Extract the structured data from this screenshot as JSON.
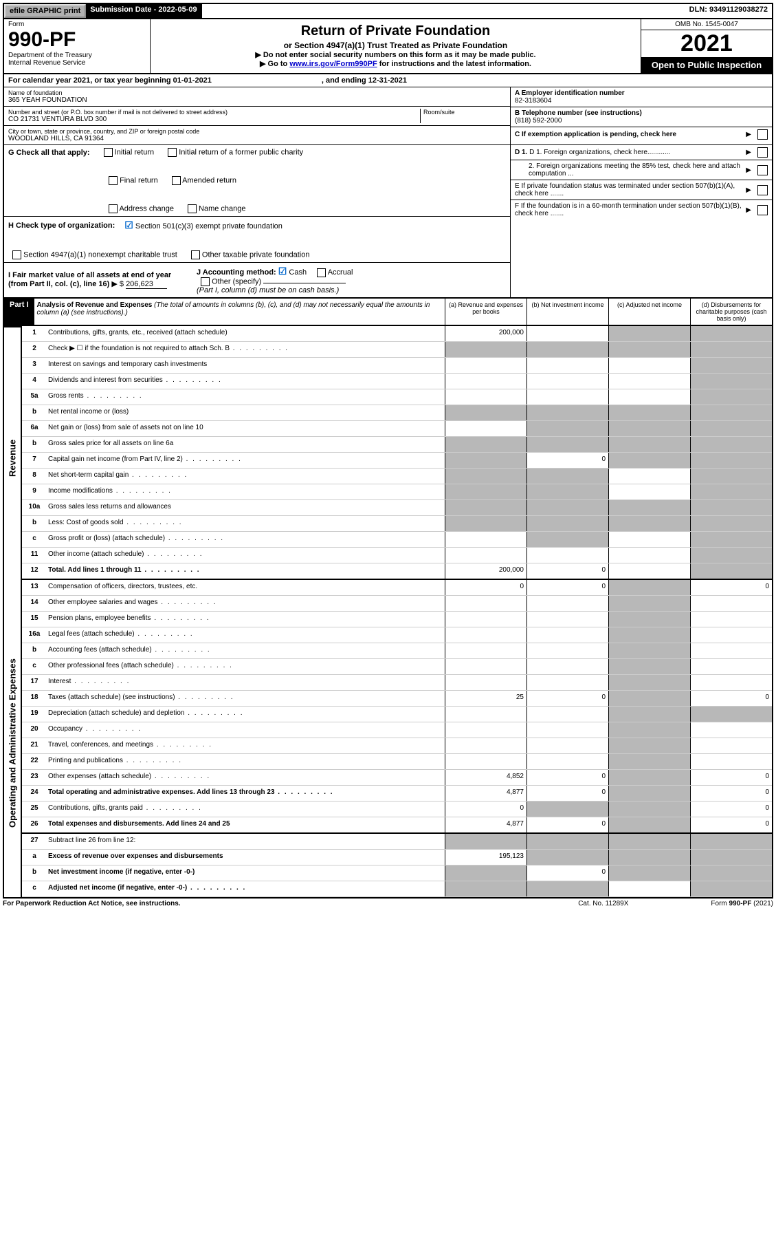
{
  "top": {
    "efile": "efile GRAPHIC print",
    "submission_label": "Submission Date - 2022-05-09",
    "dln": "DLN: 93491129038272"
  },
  "header": {
    "form_word": "Form",
    "form_number": "990-PF",
    "dept1": "Department of the Treasury",
    "dept2": "Internal Revenue Service",
    "title": "Return of Private Foundation",
    "subtitle": "or Section 4947(a)(1) Trust Treated as Private Foundation",
    "instr1": "▶ Do not enter social security numbers on this form as it may be made public.",
    "instr2_pre": "▶ Go to ",
    "instr2_link": "www.irs.gov/Form990PF",
    "instr2_post": " for instructions and the latest information.",
    "omb": "OMB No. 1545-0047",
    "year": "2021",
    "open": "Open to Public Inspection"
  },
  "calyear": {
    "pre": "For calendar year 2021, or tax year beginning 01-01-2021",
    "mid": ", and ending 12-31-2021"
  },
  "info": {
    "name_lbl": "Name of foundation",
    "name": "365 YEAH FOUNDATION",
    "addr_lbl": "Number and street (or P.O. box number if mail is not delivered to street address)",
    "addr": "CO 21731 VENTURA BLVD 300",
    "room_lbl": "Room/suite",
    "city_lbl": "City or town, state or province, country, and ZIP or foreign postal code",
    "city": "WOODLAND HILLS, CA  91364",
    "a_lbl": "A Employer identification number",
    "a_val": "82-3183604",
    "b_lbl": "B Telephone number (see instructions)",
    "b_val": "(818) 592-2000",
    "c_lbl": "C If exemption application is pending, check here",
    "d1": "D 1. Foreign organizations, check here............",
    "d2": "2. Foreign organizations meeting the 85% test, check here and attach computation ...",
    "e": "E  If private foundation status was terminated under section 507(b)(1)(A), check here .......",
    "f": "F  If the foundation is in a 60-month termination under section 507(b)(1)(B), check here .......",
    "g_lbl": "G Check all that apply:",
    "g_opts": [
      "Initial return",
      "Final return",
      "Address change",
      "Initial return of a former public charity",
      "Amended return",
      "Name change"
    ],
    "h_lbl": "H Check type of organization:",
    "h_opt1": "Section 501(c)(3) exempt private foundation",
    "h_opt2": "Section 4947(a)(1) nonexempt charitable trust",
    "h_opt3": "Other taxable private foundation",
    "i_lbl": "I Fair market value of all assets at end of year (from Part II, col. (c), line 16)",
    "i_val": "206,623",
    "j_lbl": "J Accounting method:",
    "j_cash": "Cash",
    "j_accrual": "Accrual",
    "j_other": "Other (specify)",
    "j_note": "(Part I, column (d) must be on cash basis.)"
  },
  "part1": {
    "label": "Part I",
    "title": "Analysis of Revenue and Expenses",
    "title_note": "(The total of amounts in columns (b), (c), and (d) may not necessarily equal the amounts in column (a) (see instructions).)",
    "col_a": "(a)  Revenue and expenses per books",
    "col_b": "(b)  Net investment income",
    "col_c": "(c)  Adjusted net income",
    "col_d": "(d)  Disbursements for charitable purposes (cash basis only)"
  },
  "vlabels": {
    "revenue": "Revenue",
    "expenses": "Operating and Administrative Expenses"
  },
  "rows": [
    {
      "ln": "1",
      "desc": "Contributions, gifts, grants, etc., received (attach schedule)",
      "a": "200,000",
      "b": "",
      "c": "shade",
      "d": "shade"
    },
    {
      "ln": "2",
      "desc": "Check ▶ ☐ if the foundation is not required to attach Sch. B",
      "dots": true,
      "a": "shade",
      "b": "shade",
      "c": "shade",
      "d": "shade"
    },
    {
      "ln": "3",
      "desc": "Interest on savings and temporary cash investments",
      "a": "",
      "b": "",
      "c": "",
      "d": "shade"
    },
    {
      "ln": "4",
      "desc": "Dividends and interest from securities",
      "dots": true,
      "a": "",
      "b": "",
      "c": "",
      "d": "shade"
    },
    {
      "ln": "5a",
      "desc": "Gross rents",
      "dots": true,
      "a": "",
      "b": "",
      "c": "",
      "d": "shade"
    },
    {
      "ln": "b",
      "desc": "Net rental income or (loss)",
      "a": "shade",
      "b": "shade",
      "c": "shade",
      "d": "shade"
    },
    {
      "ln": "6a",
      "desc": "Net gain or (loss) from sale of assets not on line 10",
      "a": "",
      "b": "shade",
      "c": "shade",
      "d": "shade"
    },
    {
      "ln": "b",
      "desc": "Gross sales price for all assets on line 6a",
      "a": "shade",
      "b": "shade",
      "c": "shade",
      "d": "shade"
    },
    {
      "ln": "7",
      "desc": "Capital gain net income (from Part IV, line 2)",
      "dots": true,
      "a": "shade",
      "b": "0",
      "c": "shade",
      "d": "shade"
    },
    {
      "ln": "8",
      "desc": "Net short-term capital gain",
      "dots": true,
      "a": "shade",
      "b": "shade",
      "c": "",
      "d": "shade"
    },
    {
      "ln": "9",
      "desc": "Income modifications",
      "dots": true,
      "a": "shade",
      "b": "shade",
      "c": "",
      "d": "shade"
    },
    {
      "ln": "10a",
      "desc": "Gross sales less returns and allowances",
      "a": "shade",
      "b": "shade",
      "c": "shade",
      "d": "shade"
    },
    {
      "ln": "b",
      "desc": "Less: Cost of goods sold",
      "dots": true,
      "a": "shade",
      "b": "shade",
      "c": "shade",
      "d": "shade"
    },
    {
      "ln": "c",
      "desc": "Gross profit or (loss) (attach schedule)",
      "dots": true,
      "a": "",
      "b": "shade",
      "c": "",
      "d": "shade"
    },
    {
      "ln": "11",
      "desc": "Other income (attach schedule)",
      "dots": true,
      "a": "",
      "b": "",
      "c": "",
      "d": "shade"
    },
    {
      "ln": "12",
      "desc": "Total. Add lines 1 through 11",
      "dots": true,
      "bold": true,
      "a": "200,000",
      "b": "0",
      "c": "",
      "d": "shade",
      "bb2": true
    },
    {
      "ln": "13",
      "desc": "Compensation of officers, directors, trustees, etc.",
      "a": "0",
      "b": "0",
      "c": "shade",
      "d": "0"
    },
    {
      "ln": "14",
      "desc": "Other employee salaries and wages",
      "dots": true,
      "a": "",
      "b": "",
      "c": "shade",
      "d": ""
    },
    {
      "ln": "15",
      "desc": "Pension plans, employee benefits",
      "dots": true,
      "a": "",
      "b": "",
      "c": "shade",
      "d": ""
    },
    {
      "ln": "16a",
      "desc": "Legal fees (attach schedule)",
      "dots": true,
      "a": "",
      "b": "",
      "c": "shade",
      "d": ""
    },
    {
      "ln": "b",
      "desc": "Accounting fees (attach schedule)",
      "dots": true,
      "a": "",
      "b": "",
      "c": "shade",
      "d": ""
    },
    {
      "ln": "c",
      "desc": "Other professional fees (attach schedule)",
      "dots": true,
      "a": "",
      "b": "",
      "c": "shade",
      "d": ""
    },
    {
      "ln": "17",
      "desc": "Interest",
      "dots": true,
      "a": "",
      "b": "",
      "c": "shade",
      "d": ""
    },
    {
      "ln": "18",
      "desc": "Taxes (attach schedule) (see instructions)",
      "dots": true,
      "a": "25",
      "b": "0",
      "c": "shade",
      "d": "0"
    },
    {
      "ln": "19",
      "desc": "Depreciation (attach schedule) and depletion",
      "dots": true,
      "a": "",
      "b": "",
      "c": "shade",
      "d": "shade"
    },
    {
      "ln": "20",
      "desc": "Occupancy",
      "dots": true,
      "a": "",
      "b": "",
      "c": "shade",
      "d": ""
    },
    {
      "ln": "21",
      "desc": "Travel, conferences, and meetings",
      "dots": true,
      "a": "",
      "b": "",
      "c": "shade",
      "d": ""
    },
    {
      "ln": "22",
      "desc": "Printing and publications",
      "dots": true,
      "a": "",
      "b": "",
      "c": "shade",
      "d": ""
    },
    {
      "ln": "23",
      "desc": "Other expenses (attach schedule)",
      "dots": true,
      "a": "4,852",
      "b": "0",
      "c": "shade",
      "d": "0"
    },
    {
      "ln": "24",
      "desc": "Total operating and administrative expenses. Add lines 13 through 23",
      "dots": true,
      "bold": true,
      "a": "4,877",
      "b": "0",
      "c": "shade",
      "d": "0"
    },
    {
      "ln": "25",
      "desc": "Contributions, gifts, grants paid",
      "dots": true,
      "a": "0",
      "b": "shade",
      "c": "shade",
      "d": "0"
    },
    {
      "ln": "26",
      "desc": "Total expenses and disbursements. Add lines 24 and 25",
      "bold": true,
      "a": "4,877",
      "b": "0",
      "c": "shade",
      "d": "0",
      "bb2": true
    },
    {
      "ln": "27",
      "desc": "Subtract line 26 from line 12:",
      "a": "shade",
      "b": "shade",
      "c": "shade",
      "d": "shade"
    },
    {
      "ln": "a",
      "desc": "Excess of revenue over expenses and disbursements",
      "bold": true,
      "a": "195,123",
      "b": "shade",
      "c": "shade",
      "d": "shade"
    },
    {
      "ln": "b",
      "desc": "Net investment income (if negative, enter -0-)",
      "bold": true,
      "a": "shade",
      "b": "0",
      "c": "shade",
      "d": "shade"
    },
    {
      "ln": "c",
      "desc": "Adjusted net income (if negative, enter -0-)",
      "bold": true,
      "dots": true,
      "a": "shade",
      "b": "shade",
      "c": "",
      "d": "shade"
    }
  ],
  "footer": {
    "left": "For Paperwork Reduction Act Notice, see instructions.",
    "center": "Cat. No. 11289X",
    "right": "Form 990-PF (2021)"
  },
  "colors": {
    "shade": "#b8b8b8",
    "link": "#0000cc",
    "check": "#0066cc"
  }
}
